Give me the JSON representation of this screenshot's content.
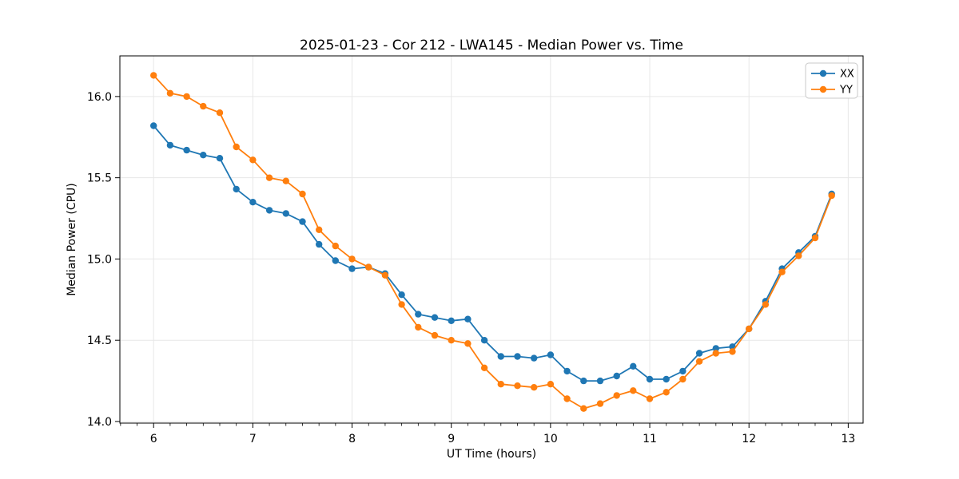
{
  "chart_data": {
    "type": "line",
    "title": "2025-01-23 - Cor 212 - LWA145 - Median Power vs. Time",
    "xlabel": "UT Time (hours)",
    "ylabel": "Median Power (CPU)",
    "xlim": [
      5.66,
      13.15
    ],
    "ylim": [
      13.99,
      16.25
    ],
    "x_ticks": [
      6,
      7,
      8,
      9,
      10,
      11,
      12,
      13
    ],
    "y_ticks": [
      14.0,
      14.5,
      15.0,
      15.5,
      16.0
    ],
    "x_minor_per_hour": 6,
    "grid": true,
    "grid_color": "#e7e7e7",
    "frame_color": "#000000",
    "legend_position": "upper right",
    "x": [
      6.0,
      6.1667,
      6.3333,
      6.5,
      6.6667,
      6.8333,
      7.0,
      7.1667,
      7.3333,
      7.5,
      7.6667,
      7.8333,
      8.0,
      8.1667,
      8.3333,
      8.5,
      8.6667,
      8.8333,
      9.0,
      9.1667,
      9.3333,
      9.5,
      9.6667,
      9.8333,
      10.0,
      10.1667,
      10.3333,
      10.5,
      10.6667,
      10.8333,
      11.0,
      11.1667,
      11.3333,
      11.5,
      11.6667,
      11.8333,
      12.0,
      12.1667,
      12.3333,
      12.5,
      12.6667,
      12.8333
    ],
    "series": [
      {
        "name": "XX",
        "color": "#1f77b4",
        "values": [
          15.82,
          15.7,
          15.67,
          15.64,
          15.62,
          15.43,
          15.35,
          15.3,
          15.28,
          15.23,
          15.09,
          14.99,
          14.94,
          14.95,
          14.91,
          14.78,
          14.66,
          14.64,
          14.62,
          14.63,
          14.5,
          14.4,
          14.4,
          14.39,
          14.41,
          14.31,
          14.25,
          14.25,
          14.28,
          14.34,
          14.26,
          14.26,
          14.31,
          14.42,
          14.45,
          14.46,
          14.57,
          14.74,
          14.94,
          15.04,
          15.14,
          15.4
        ]
      },
      {
        "name": "YY",
        "color": "#ff7f0e",
        "values": [
          16.13,
          16.02,
          16.0,
          15.94,
          15.9,
          15.69,
          15.61,
          15.5,
          15.48,
          15.4,
          15.18,
          15.08,
          15.0,
          14.95,
          14.9,
          14.72,
          14.58,
          14.53,
          14.5,
          14.48,
          14.33,
          14.23,
          14.22,
          14.21,
          14.23,
          14.14,
          14.08,
          14.11,
          14.16,
          14.19,
          14.14,
          14.18,
          14.26,
          14.37,
          14.42,
          14.43,
          14.57,
          14.72,
          14.92,
          15.02,
          15.13,
          15.39
        ]
      }
    ]
  }
}
